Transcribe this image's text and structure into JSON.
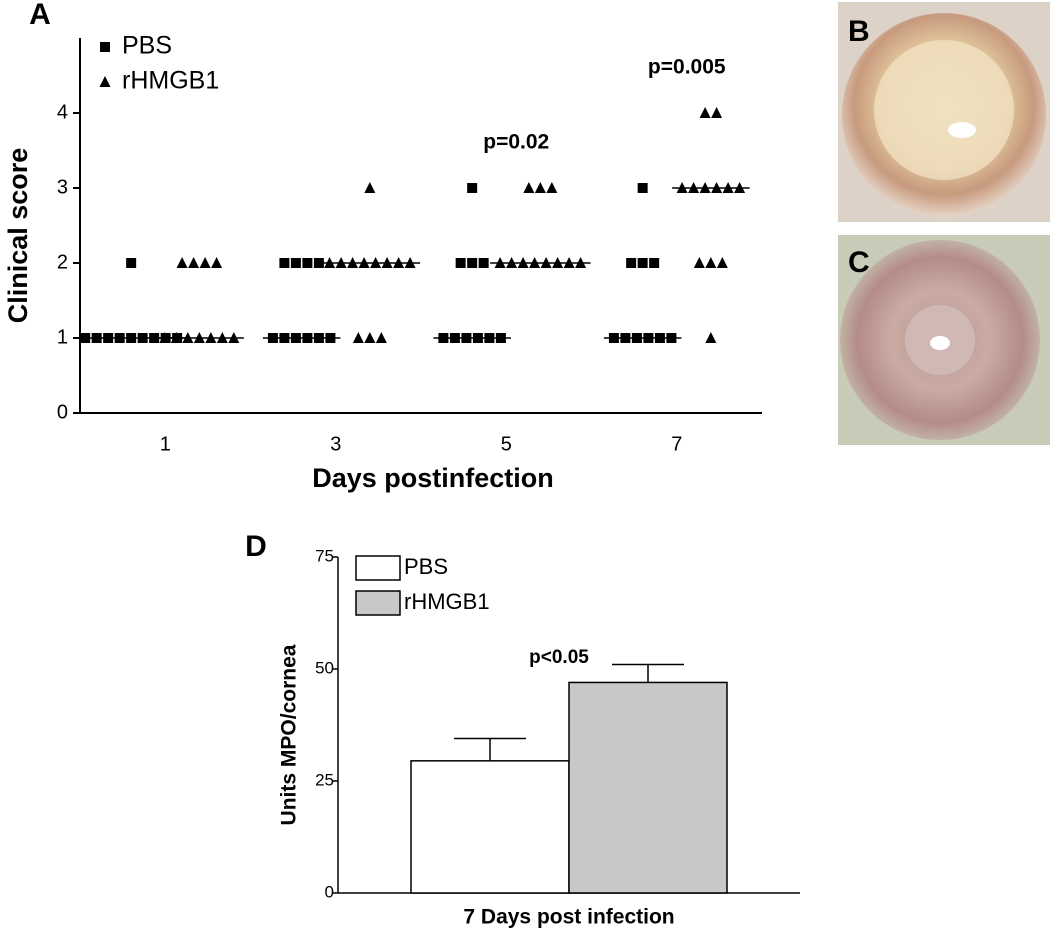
{
  "chart_data": [
    {
      "type": "scatter",
      "panel": "A",
      "ylabel": "Clinical score",
      "xlabel": "Days postinfection",
      "categories": [
        "1",
        "3",
        "5",
        "7"
      ],
      "ylim": [
        0,
        5
      ],
      "yticks": [
        0,
        1,
        2,
        3,
        4
      ],
      "legend": "top-left",
      "series": [
        {
          "name": "PBS",
          "marker": "square",
          "color": "#000000",
          "values": [
            [
              2,
              1,
              1,
              1,
              1,
              1,
              1,
              1,
              1,
              1
            ],
            [
              2,
              2,
              2,
              2,
              1,
              1,
              1,
              1,
              1,
              1
            ],
            [
              3,
              2,
              2,
              2,
              1,
              1,
              1,
              1,
              1,
              1
            ],
            [
              3,
              2,
              2,
              2,
              1,
              1,
              1,
              1,
              1,
              1
            ]
          ],
          "medians": [
            1,
            1,
            1,
            1
          ]
        },
        {
          "name": "rHMGB1",
          "marker": "triangle",
          "color": "#000000",
          "values": [
            [
              2,
              2,
              2,
              2,
              1,
              1,
              1,
              1,
              1,
              1,
              1
            ],
            [
              3,
              2,
              2,
              2,
              2,
              2,
              2,
              2,
              2,
              1,
              1,
              1
            ],
            [
              3,
              3,
              3,
              2,
              2,
              2,
              2,
              2,
              2,
              2,
              2
            ],
            [
              4,
              4,
              3,
              3,
              3,
              3,
              3,
              3,
              2,
              2,
              2,
              1
            ]
          ],
          "medians": [
            1,
            2,
            2,
            3
          ]
        }
      ],
      "annotations": [
        {
          "category": "5",
          "text": "p=0.02"
        },
        {
          "category": "7",
          "text": "p=0.005"
        }
      ]
    },
    {
      "type": "bar",
      "panel": "D",
      "ylabel": "Units MPO/cornea",
      "xlabel": "7 Days post infection",
      "ylim": [
        0,
        75
      ],
      "yticks": [
        0,
        25,
        50,
        75
      ],
      "legend": "top-left",
      "series": [
        {
          "name": "PBS",
          "color": "#ffffff",
          "values": [
            29.5
          ],
          "errors": [
            5
          ]
        },
        {
          "name": "rHMGB1",
          "color": "#c8c8c8",
          "values": [
            47
          ],
          "errors": [
            4
          ]
        }
      ],
      "annotations": [
        {
          "text": "p<0.05"
        }
      ]
    }
  ],
  "images": [
    {
      "panel": "B"
    },
    {
      "panel": "C"
    }
  ]
}
